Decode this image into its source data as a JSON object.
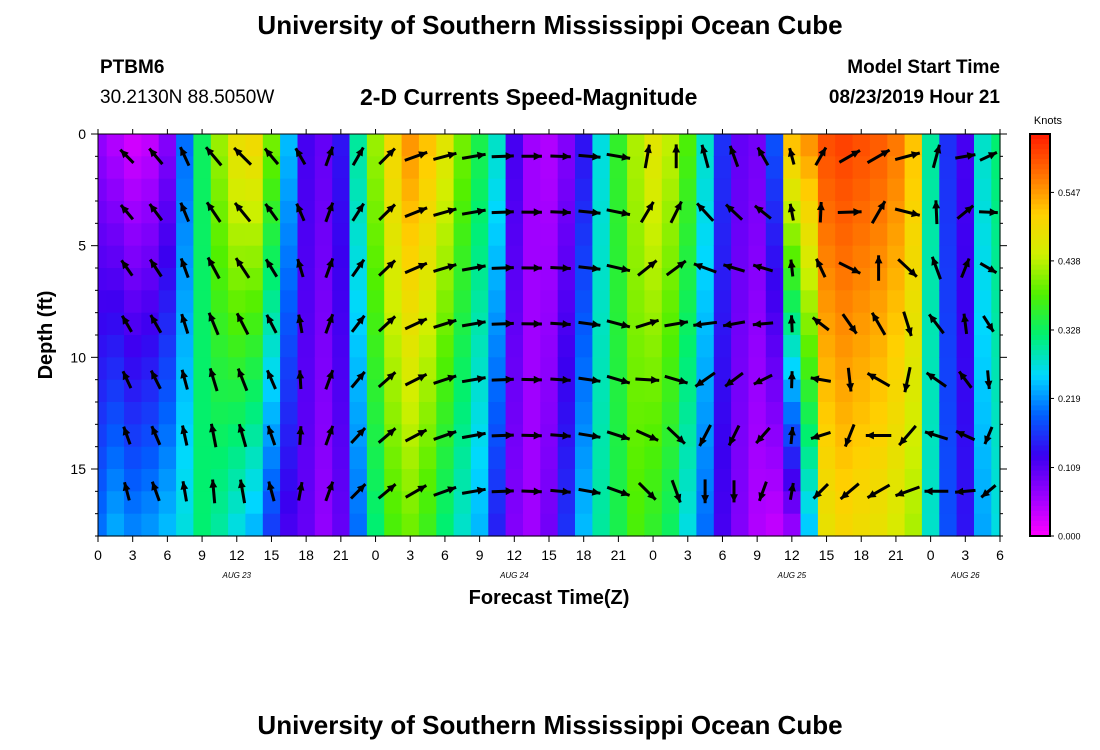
{
  "header": {
    "title": "University of Southern Mississippi Ocean Cube",
    "station_id": "PTBM6",
    "coordinates": "30.2130N 88.5050W",
    "subtitle": "2-D Currents Speed-Magnitude",
    "model_start_label": "Model Start Time",
    "model_start_value": "08/23/2019 Hour 21",
    "footer_title": "University of Southern Mississippi Ocean Cube"
  },
  "chart_data": {
    "type": "heatmap",
    "title": "2-D Currents Speed-Magnitude",
    "xlabel": "Forecast Time(Z)",
    "ylabel": "Depth (ft)",
    "x_ticks": [
      "0",
      "3",
      "6",
      "9",
      "12",
      "15",
      "18",
      "21",
      "0",
      "3",
      "6",
      "9",
      "12",
      "15",
      "18",
      "21",
      "0",
      "3",
      "6",
      "9",
      "12",
      "15",
      "18",
      "21",
      "0",
      "3",
      "6"
    ],
    "x_range_hours": [
      0,
      78
    ],
    "date_labels": [
      {
        "label": "AUG 23",
        "hour": 12
      },
      {
        "label": "AUG 24",
        "hour": 36
      },
      {
        "label": "AUG 25",
        "hour": 60
      },
      {
        "label": "AUG 26",
        "hour": 75
      }
    ],
    "y_ticks": [
      0,
      5,
      10,
      15
    ],
    "y_range_ft": [
      0,
      18
    ],
    "colorbar": {
      "label": "Knots",
      "range": [
        0.0,
        0.64
      ],
      "ticks": [
        "0.000",
        "0.109",
        "0.219",
        "0.328",
        "0.438",
        "0.547"
      ],
      "tick_values": [
        0.0,
        0.109,
        0.219,
        0.328,
        0.438,
        0.547
      ],
      "colors": [
        "#ff00ff",
        "#9a00ff",
        "#3a00f0",
        "#0060ff",
        "#00d8ff",
        "#00f070",
        "#50f000",
        "#d0f000",
        "#ffd000",
        "#ff7000",
        "#ff1a00"
      ]
    },
    "hours": [
      0,
      1.5,
      3,
      4.5,
      6,
      7.5,
      9,
      10.5,
      12,
      13.5,
      15,
      16.5,
      18,
      19.5,
      21,
      22.5,
      24,
      25.5,
      27,
      28.5,
      30,
      31.5,
      33,
      34.5,
      36,
      37.5,
      39,
      40.5,
      42,
      43.5,
      45,
      46.5,
      48,
      49.5,
      51,
      52.5,
      54,
      55.5,
      57,
      58.5,
      60,
      61.5,
      63,
      64.5,
      66,
      67.5,
      69,
      70.5,
      72,
      73.5,
      75,
      76.5,
      78
    ],
    "surface_speed": [
      0.07,
      0.05,
      0.03,
      0.04,
      0.08,
      0.2,
      0.33,
      0.42,
      0.48,
      0.49,
      0.4,
      0.24,
      0.12,
      0.1,
      0.14,
      0.3,
      0.42,
      0.5,
      0.55,
      0.52,
      0.47,
      0.4,
      0.34,
      0.28,
      0.12,
      0.06,
      0.05,
      0.08,
      0.14,
      0.27,
      0.36,
      0.43,
      0.47,
      0.44,
      0.38,
      0.28,
      0.16,
      0.1,
      0.09,
      0.18,
      0.52,
      0.55,
      0.6,
      0.61,
      0.6,
      0.59,
      0.57,
      0.52,
      0.3,
      0.16,
      0.12,
      0.28,
      0.32
    ],
    "bottom_speed": [
      0.2,
      0.23,
      0.21,
      0.22,
      0.24,
      0.27,
      0.32,
      0.3,
      0.27,
      0.24,
      0.17,
      0.12,
      0.1,
      0.07,
      0.1,
      0.2,
      0.32,
      0.38,
      0.4,
      0.37,
      0.32,
      0.28,
      0.24,
      0.15,
      0.08,
      0.06,
      0.09,
      0.16,
      0.24,
      0.3,
      0.34,
      0.38,
      0.36,
      0.33,
      0.27,
      0.2,
      0.12,
      0.08,
      0.05,
      0.04,
      0.07,
      0.25,
      0.48,
      0.5,
      0.49,
      0.48,
      0.46,
      0.43,
      0.28,
      0.18,
      0.14,
      0.23,
      0.27
    ],
    "arrow_hours": [
      2.5,
      5,
      7.5,
      10,
      12.5,
      15,
      17.5,
      20,
      22.5,
      25,
      27.5,
      30,
      32.5,
      35,
      37.5,
      40,
      42.5,
      45,
      47.5,
      50,
      52.5,
      55,
      57.5,
      60,
      62.5,
      65,
      67.5,
      70,
      72.5,
      75,
      77
    ],
    "arrow_depths_ft": [
      1,
      3.5,
      6,
      8.5,
      11,
      13.5,
      16
    ],
    "arrow_direction_deg_surface": [
      315,
      320,
      335,
      320,
      315,
      320,
      330,
      20,
      30,
      45,
      70,
      75,
      80,
      88,
      90,
      92,
      95,
      100,
      10,
      0,
      345,
      340,
      330,
      345,
      30,
      60,
      60,
      75,
      15,
      80,
      65
    ],
    "arrow_direction_deg_bottom": [
      345,
      340,
      350,
      355,
      350,
      345,
      10,
      20,
      45,
      50,
      60,
      70,
      80,
      88,
      92,
      95,
      100,
      110,
      135,
      160,
      180,
      180,
      200,
      10,
      225,
      230,
      240,
      250,
      270,
      265,
      230
    ],
    "arrow_magnitude": [
      0.55,
      0.6,
      0.6,
      0.7,
      0.7,
      0.6,
      0.55,
      0.6,
      0.6,
      0.65,
      0.7,
      0.7,
      0.7,
      0.65,
      0.6,
      0.6,
      0.65,
      0.7,
      0.7,
      0.7,
      0.7,
      0.65,
      0.6,
      0.5,
      0.6,
      0.7,
      0.75,
      0.75,
      0.7,
      0.6,
      0.55
    ]
  }
}
